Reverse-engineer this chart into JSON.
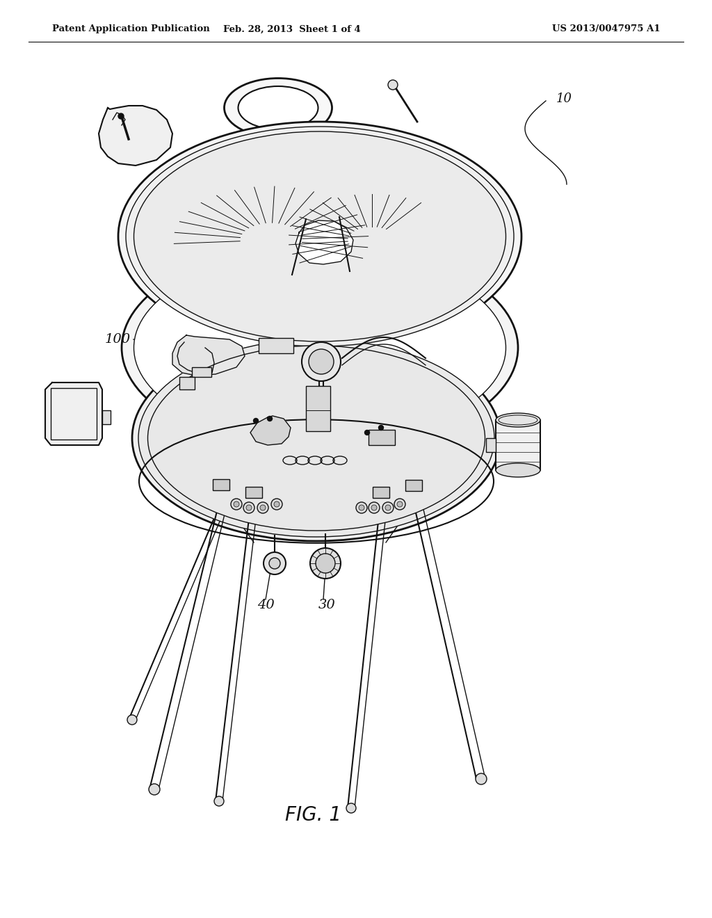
{
  "background_color": "#ffffff",
  "header_left": "Patent Application Publication",
  "header_center": "Feb. 28, 2013  Sheet 1 of 4",
  "header_right": "US 2013/0047975 A1",
  "figure_label": "FIG. 1",
  "header_fontsize": 9.5,
  "fig_label_fontsize": 20,
  "ref_fontsize": 13,
  "lc": "#111111"
}
